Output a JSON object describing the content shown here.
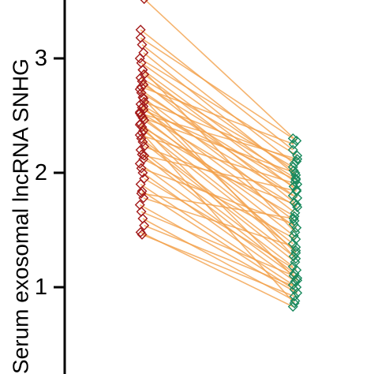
{
  "chart_data": {
    "type": "scatter",
    "subtype": "paired-dot-plot",
    "ylabel": "Serum exosomal lncRNA SNHG",
    "y_ticks": [
      1,
      2,
      3
    ],
    "y_tick_labels": [
      "1",
      "2",
      "3"
    ],
    "ylim": [
      0.25,
      3.5
    ],
    "grid": false,
    "legend": "none",
    "colors": {
      "group1_marker": "#a31a1a",
      "group2_marker": "#1b8a5e",
      "pair_line": "#f2a04a",
      "axis": "#000000"
    },
    "marker": "diamond-open",
    "pairs": [
      [
        3.52,
        2.28
      ],
      [
        3.25,
        2.2
      ],
      [
        3.12,
        2.08
      ],
      [
        3.05,
        1.98
      ],
      [
        3.0,
        2.15
      ],
      [
        2.96,
        2.02
      ],
      [
        2.9,
        1.92
      ],
      [
        2.86,
        1.85
      ],
      [
        2.83,
        2.05
      ],
      [
        2.8,
        1.74
      ],
      [
        2.77,
        1.95
      ],
      [
        2.73,
        1.78
      ],
      [
        2.7,
        1.88
      ],
      [
        2.66,
        1.65
      ],
      [
        2.62,
        2.1
      ],
      [
        2.6,
        1.8
      ],
      [
        2.57,
        1.58
      ],
      [
        2.55,
        1.94
      ],
      [
        2.53,
        1.7
      ],
      [
        2.5,
        1.45
      ],
      [
        2.48,
        2.0
      ],
      [
        2.46,
        1.52
      ],
      [
        2.43,
        1.38
      ],
      [
        2.4,
        1.62
      ],
      [
        2.37,
        1.32
      ],
      [
        2.33,
        1.9
      ],
      [
        2.3,
        1.27
      ],
      [
        2.27,
        1.22
      ],
      [
        2.23,
        1.72
      ],
      [
        2.2,
        1.18
      ],
      [
        2.16,
        1.12
      ],
      [
        2.12,
        1.42
      ],
      [
        2.08,
        1.08
      ],
      [
        2.04,
        1.55
      ],
      [
        2.0,
        1.05
      ],
      [
        1.95,
        1.15
      ],
      [
        1.9,
        1.02
      ],
      [
        1.84,
        0.98
      ],
      [
        1.78,
        1.35
      ],
      [
        1.72,
        0.95
      ],
      [
        1.66,
        1.1
      ],
      [
        1.6,
        0.88
      ],
      [
        1.54,
        1.0
      ],
      [
        1.48,
        0.83
      ],
      [
        1.46,
        0.92
      ],
      [
        2.65,
        1.25
      ],
      [
        2.42,
        1.06
      ],
      [
        2.75,
        2.25
      ],
      [
        2.9,
        1.48
      ],
      [
        2.15,
        1.84
      ],
      [
        3.18,
        2.3
      ],
      [
        2.35,
        0.86
      ],
      [
        2.58,
        1.3
      ],
      [
        2.52,
        2.12
      ],
      [
        1.82,
        1.6
      ]
    ]
  }
}
